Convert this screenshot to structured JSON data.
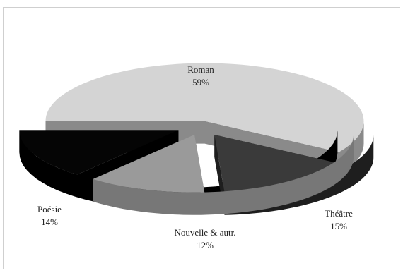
{
  "chart_data": {
    "type": "pie",
    "style": "3d-exploded",
    "slices": [
      {
        "label": "Roman",
        "value": 59,
        "value_label": "59%",
        "color": "#d4d4d4",
        "side_color": "#8a8a8a"
      },
      {
        "label": "Théâtre",
        "value": 15,
        "value_label": "15%",
        "color": "#3a3a3a",
        "side_color": "#1e1e1e"
      },
      {
        "label": "Nouvelle & autr.",
        "value": 12,
        "value_label": "12%",
        "color": "#9a9a9a",
        "side_color": "#777777"
      },
      {
        "label": "Poésie",
        "value": 14,
        "value_label": "14%",
        "color": "#050505",
        "side_color": "#000000"
      }
    ]
  }
}
